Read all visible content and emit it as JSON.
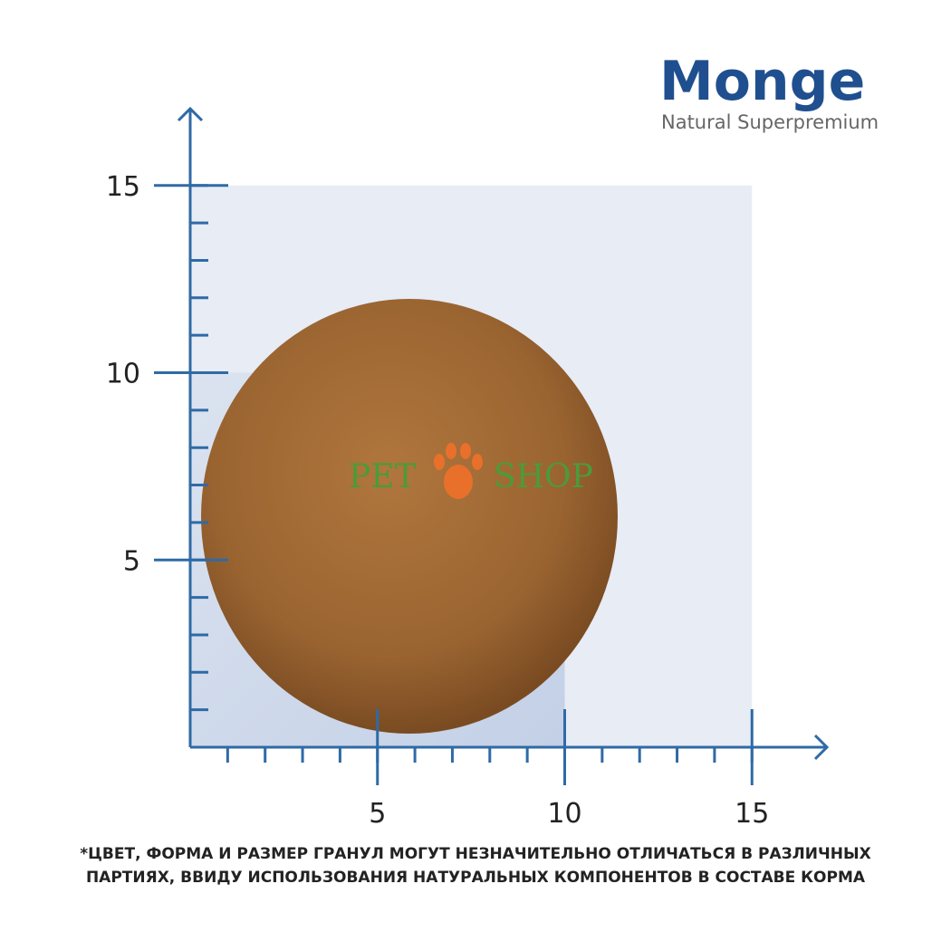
{
  "header": {
    "brand": "Monge",
    "tagline": "Natural Superpremium"
  },
  "axis": {
    "x_ticks": [
      5,
      10,
      15
    ],
    "y_ticks": [
      5,
      10,
      15
    ]
  },
  "watermark": {
    "left": "PET",
    "right": "SHOP"
  },
  "footnote": [
    "*ЦВЕТ, ФОРМА И РАЗМЕР ГРАНУЛ МОГУТ НЕЗНАЧИТЕЛЬНО ОТЛИЧАТЬСЯ  В РАЗЛИЧНЫХ",
    "ПАРТИЯХ, ВВИДУ ИСПОЛЬЗОВАНИЯ НАТУРАЛЬНЫХ КОМПОНЕНТОВ В СОСТАВЕ  КОРМА"
  ]
}
